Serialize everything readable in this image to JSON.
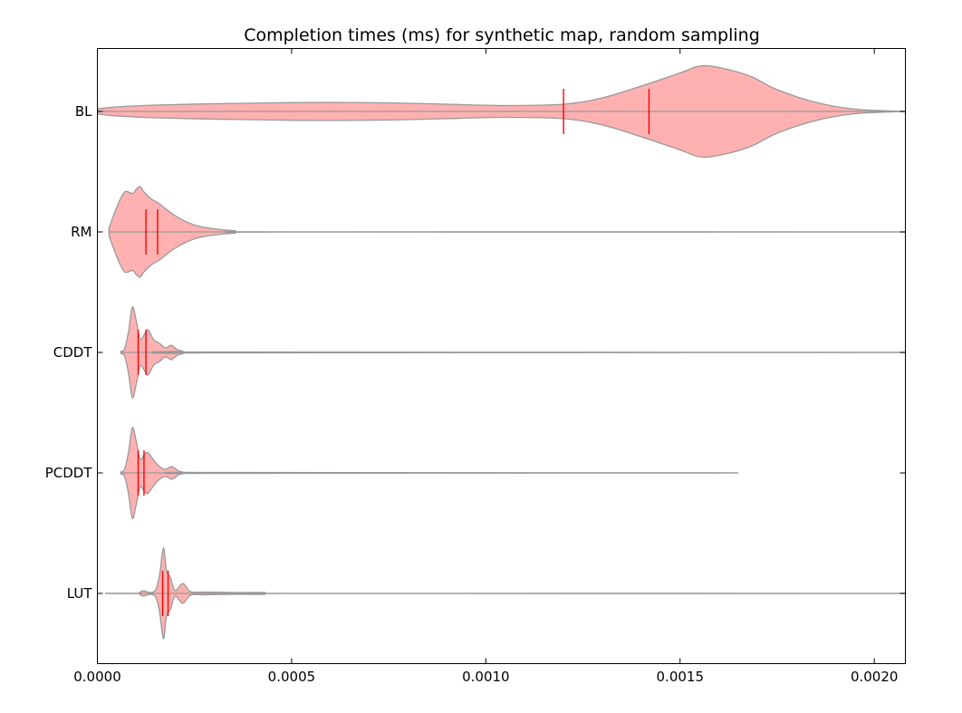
{
  "chart_data": {
    "type": "violin",
    "orientation": "horizontal",
    "title": "Completion times (ms) for synthetic map, random sampling",
    "xlabel": "",
    "ylabel": "",
    "xlim": [
      0,
      0.00208
    ],
    "xticks": [
      0.0,
      0.0005,
      0.001,
      0.0015,
      0.002
    ],
    "xtick_labels": [
      "0.0000",
      "0.0005",
      "0.0010",
      "0.0015",
      "0.0020"
    ],
    "grid": false,
    "fill_color": "#ffb1b1",
    "edge_color": "#999999",
    "marker_color": "#ff0000",
    "series": [
      {
        "name": "BL",
        "range": [
          2e-06,
          0.00208
        ],
        "median": 0.0012,
        "mean": 0.00142,
        "density": [
          [
            2e-06,
            0.06
          ],
          [
            5e-05,
            0.1
          ],
          [
            0.00015,
            0.14
          ],
          [
            0.0003,
            0.17
          ],
          [
            0.00045,
            0.19
          ],
          [
            0.0006,
            0.2
          ],
          [
            0.00075,
            0.19
          ],
          [
            0.0009,
            0.16
          ],
          [
            0.00105,
            0.13
          ],
          [
            0.0012,
            0.16
          ],
          [
            0.0013,
            0.3
          ],
          [
            0.0014,
            0.56
          ],
          [
            0.0015,
            0.85
          ],
          [
            0.00155,
            1.0
          ],
          [
            0.0016,
            0.97
          ],
          [
            0.00168,
            0.78
          ],
          [
            0.00175,
            0.48
          ],
          [
            0.00185,
            0.2
          ],
          [
            0.00195,
            0.05
          ],
          [
            0.00208,
            0.0
          ]
        ]
      },
      {
        "name": "RM",
        "range": [
          3e-05,
          0.00208
        ],
        "median": 0.000125,
        "mean": 0.000155,
        "density": [
          [
            3e-05,
            0.08
          ],
          [
            5e-05,
            0.55
          ],
          [
            7e-05,
            0.88
          ],
          [
            9e-05,
            0.85
          ],
          [
            0.0001,
            0.94
          ],
          [
            0.00011,
            1.0
          ],
          [
            0.00012,
            0.88
          ],
          [
            0.00014,
            0.72
          ],
          [
            0.00016,
            0.62
          ],
          [
            0.00018,
            0.48
          ],
          [
            0.0002,
            0.36
          ],
          [
            0.00023,
            0.22
          ],
          [
            0.00027,
            0.11
          ],
          [
            0.00035,
            0.03
          ],
          [
            0.0005,
            0.0
          ],
          [
            0.00208,
            0.0
          ]
        ]
      },
      {
        "name": "CDDT",
        "range": [
          6e-05,
          0.00208
        ],
        "median": 0.000105,
        "mean": 0.000125,
        "density": [
          [
            6e-05,
            0.02
          ],
          [
            7e-05,
            0.08
          ],
          [
            8e-05,
            0.45
          ],
          [
            9e-05,
            1.0
          ],
          [
            0.0001,
            0.7
          ],
          [
            0.00011,
            0.3
          ],
          [
            0.00012,
            0.38
          ],
          [
            0.00013,
            0.5
          ],
          [
            0.000145,
            0.28
          ],
          [
            0.00016,
            0.2
          ],
          [
            0.000175,
            0.1
          ],
          [
            0.00019,
            0.16
          ],
          [
            0.0002,
            0.1
          ],
          [
            0.00022,
            0.03
          ],
          [
            0.0003,
            0.01
          ],
          [
            0.00208,
            0.0
          ]
        ]
      },
      {
        "name": "PCDDT",
        "range": [
          6e-05,
          0.00165
        ],
        "median": 0.000105,
        "mean": 0.00012,
        "density": [
          [
            6e-05,
            0.02
          ],
          [
            7e-05,
            0.08
          ],
          [
            8e-05,
            0.45
          ],
          [
            9e-05,
            1.0
          ],
          [
            0.0001,
            0.7
          ],
          [
            0.00011,
            0.3
          ],
          [
            0.00012,
            0.4
          ],
          [
            0.00013,
            0.45
          ],
          [
            0.000145,
            0.28
          ],
          [
            0.00016,
            0.14
          ],
          [
            0.000175,
            0.08
          ],
          [
            0.00019,
            0.14
          ],
          [
            0.0002,
            0.1
          ],
          [
            0.00022,
            0.02
          ],
          [
            0.0003,
            0.01
          ],
          [
            0.00165,
            0.0
          ]
        ]
      },
      {
        "name": "LUT",
        "range": [
          2e-05,
          0.00208
        ],
        "median": 0.000168,
        "mean": 0.000182,
        "density": [
          [
            2e-05,
            0.0
          ],
          [
            0.0001,
            0.0
          ],
          [
            0.00011,
            0.03
          ],
          [
            0.00012,
            0.06
          ],
          [
            0.000135,
            0.02
          ],
          [
            0.00015,
            0.08
          ],
          [
            0.00016,
            0.4
          ],
          [
            0.00017,
            1.0
          ],
          [
            0.000178,
            0.5
          ],
          [
            0.000188,
            0.35
          ],
          [
            0.0002,
            0.06
          ],
          [
            0.00022,
            0.22
          ],
          [
            0.00024,
            0.04
          ],
          [
            0.00028,
            0.03
          ],
          [
            0.00035,
            0.02
          ],
          [
            0.00043,
            0.02
          ],
          [
            0.0005,
            0.0
          ],
          [
            0.00208,
            0.0
          ]
        ]
      }
    ]
  }
}
